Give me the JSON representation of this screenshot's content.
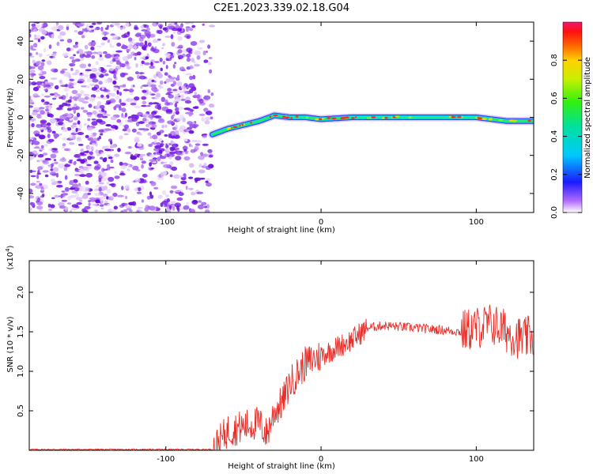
{
  "title": "C2E1.2023.339.02.18.G04",
  "colors": {
    "snr_line": "#e8302a",
    "noise_dots": "#8a2be2"
  },
  "chart_data": [
    {
      "type": "heatmap",
      "title": "C2E1.2023.339.02.18.G04",
      "xlabel": "Height of straight line (km)",
      "ylabel": "Frequency (Hz)",
      "xlim": [
        -188,
        137
      ],
      "ylim": [
        -50,
        50
      ],
      "xticks": [
        -100,
        0,
        100
      ],
      "yticks": [
        -40,
        -20,
        0,
        20,
        40
      ],
      "colorbar": {
        "label": "Normalized spectral amplitude",
        "range": [
          0.0,
          1.0
        ],
        "ticks": [
          "0.0",
          "0.2",
          "0.4",
          "0.6",
          "0.8"
        ]
      },
      "noise_region": {
        "x_range": [
          -188,
          -70
        ],
        "freq_range": [
          -50,
          50
        ]
      },
      "signal_ridge": {
        "x": [
          -70,
          -60,
          -50,
          -40,
          -30,
          -20,
          -10,
          0,
          20,
          40,
          60,
          80,
          100,
          120,
          137
        ],
        "freq": [
          -9,
          -6,
          -4,
          -2,
          1,
          0,
          0,
          -1,
          0,
          0,
          0,
          0,
          0,
          -2,
          -2
        ]
      }
    },
    {
      "type": "line",
      "xlabel": "Height of straight line (km)",
      "ylabel": "SNR (10 * v/v)",
      "yscale_label": "(x10^4)",
      "xlim": [
        -188,
        137
      ],
      "ylim": [
        0,
        2.4
      ],
      "xticks": [
        -100,
        0,
        100
      ],
      "yticks": [
        "0.5",
        "1.0",
        "1.5",
        "2.0"
      ],
      "series": [
        {
          "x": [
            -188,
            -70,
            -65,
            -60,
            -50,
            -40,
            -35,
            -30,
            -25,
            -20,
            -10,
            0,
            10,
            20,
            30,
            40,
            60,
            80,
            90,
            100,
            110,
            120,
            130,
            137
          ],
          "y": [
            0.01,
            0.01,
            0.12,
            0.25,
            0.3,
            0.35,
            0.2,
            0.5,
            0.6,
            0.85,
            1.1,
            1.2,
            1.3,
            1.4,
            1.55,
            1.58,
            1.55,
            1.52,
            1.5,
            1.55,
            1.6,
            1.5,
            1.4,
            1.45
          ]
        }
      ]
    }
  ]
}
